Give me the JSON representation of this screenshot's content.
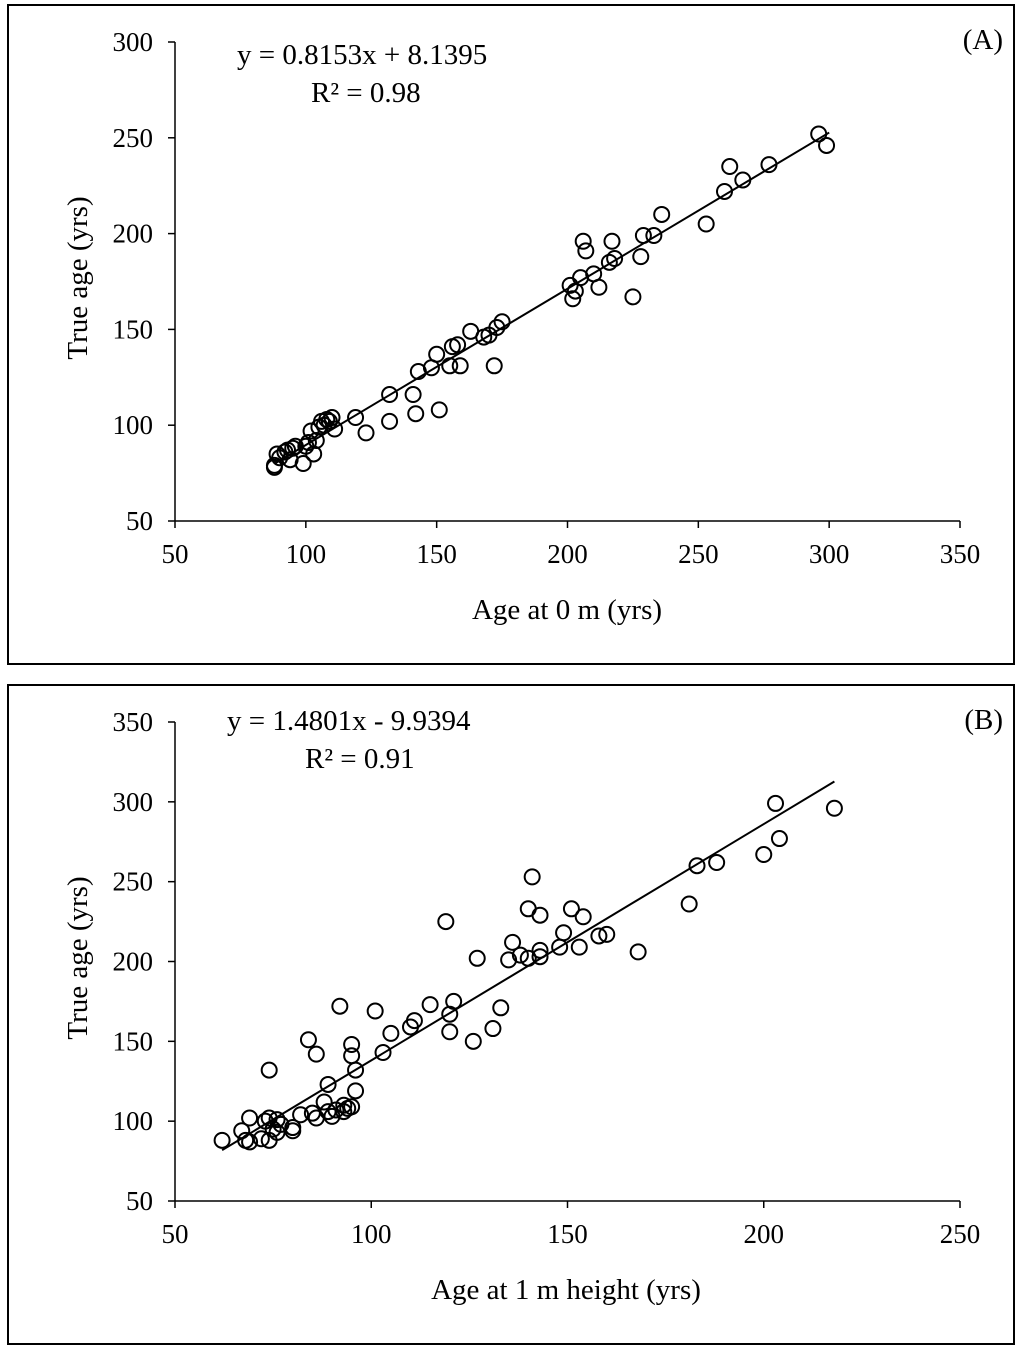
{
  "chart_data": [
    {
      "panel": "(A)",
      "type": "scatter",
      "xlabel": "Age at 0 m (yrs)",
      "ylabel": "True age (yrs)",
      "xlim": [
        50,
        350
      ],
      "ylim": [
        50,
        300
      ],
      "xticks": [
        50,
        100,
        150,
        200,
        250,
        300,
        350
      ],
      "yticks": [
        50,
        100,
        150,
        200,
        250,
        300
      ],
      "equation": "y = 0.8153x + 8.1395",
      "r2": "R² = 0.98",
      "trendline": {
        "slope": 0.8153,
        "intercept": 8.1395,
        "x_range": [
          88,
          300
        ]
      },
      "points": [
        [
          88,
          78
        ],
        [
          88,
          79
        ],
        [
          89,
          85
        ],
        [
          90,
          83
        ],
        [
          92,
          86
        ],
        [
          93,
          87
        ],
        [
          94,
          82
        ],
        [
          95,
          88
        ],
        [
          96,
          89
        ],
        [
          99,
          80
        ],
        [
          100,
          89
        ],
        [
          101,
          91
        ],
        [
          102,
          97
        ],
        [
          103,
          85
        ],
        [
          104,
          92
        ],
        [
          105,
          99
        ],
        [
          106,
          102
        ],
        [
          107,
          100
        ],
        [
          108,
          103
        ],
        [
          109,
          102
        ],
        [
          110,
          104
        ],
        [
          111,
          98
        ],
        [
          119,
          104
        ],
        [
          123,
          96
        ],
        [
          132,
          116
        ],
        [
          132,
          102
        ],
        [
          141,
          116
        ],
        [
          142,
          106
        ],
        [
          143,
          128
        ],
        [
          148,
          130
        ],
        [
          150,
          137
        ],
        [
          151,
          108
        ],
        [
          155,
          131
        ],
        [
          156,
          141
        ],
        [
          158,
          142
        ],
        [
          159,
          131
        ],
        [
          163,
          149
        ],
        [
          168,
          146
        ],
        [
          170,
          147
        ],
        [
          172,
          131
        ],
        [
          173,
          151
        ],
        [
          175,
          154
        ],
        [
          201,
          173
        ],
        [
          202,
          166
        ],
        [
          203,
          170
        ],
        [
          205,
          177
        ],
        [
          206,
          196
        ],
        [
          207,
          191
        ],
        [
          210,
          179
        ],
        [
          212,
          172
        ],
        [
          216,
          185
        ],
        [
          217,
          196
        ],
        [
          218,
          187
        ],
        [
          225,
          167
        ],
        [
          228,
          188
        ],
        [
          229,
          199
        ],
        [
          233,
          199
        ],
        [
          236,
          210
        ],
        [
          253,
          205
        ],
        [
          260,
          222
        ],
        [
          262,
          235
        ],
        [
          267,
          228
        ],
        [
          277,
          236
        ],
        [
          296,
          252
        ],
        [
          299,
          246
        ]
      ]
    },
    {
      "panel": "(B)",
      "type": "scatter",
      "xlabel": "Age at 1 m height (yrs)",
      "ylabel": "True age (yrs)",
      "xlim": [
        50,
        250
      ],
      "ylim": [
        50,
        350
      ],
      "xticks": [
        50,
        100,
        150,
        200,
        250
      ],
      "yticks": [
        50,
        100,
        150,
        200,
        250,
        300,
        350
      ],
      "equation": "y = 1.4801x - 9.9394",
      "r2": "R² = 0.91",
      "trendline": {
        "slope": 1.4801,
        "intercept": -9.9394,
        "x_range": [
          62,
          218
        ]
      },
      "points": [
        [
          62,
          88
        ],
        [
          67,
          94
        ],
        [
          68,
          88
        ],
        [
          69,
          87
        ],
        [
          69,
          102
        ],
        [
          72,
          89
        ],
        [
          73,
          100
        ],
        [
          74,
          88
        ],
        [
          74,
          102
        ],
        [
          74,
          132
        ],
        [
          75,
          95
        ],
        [
          76,
          93
        ],
        [
          76,
          101
        ],
        [
          77,
          98
        ],
        [
          80,
          94
        ],
        [
          80,
          96
        ],
        [
          82,
          104
        ],
        [
          84,
          151
        ],
        [
          85,
          105
        ],
        [
          86,
          102
        ],
        [
          86,
          142
        ],
        [
          88,
          112
        ],
        [
          89,
          123
        ],
        [
          89,
          106
        ],
        [
          90,
          103
        ],
        [
          91,
          107
        ],
        [
          92,
          172
        ],
        [
          93,
          110
        ],
        [
          93,
          106
        ],
        [
          94,
          108
        ],
        [
          95,
          148
        ],
        [
          95,
          141
        ],
        [
          95,
          109
        ],
        [
          96,
          132
        ],
        [
          96,
          119
        ],
        [
          101,
          169
        ],
        [
          103,
          143
        ],
        [
          105,
          155
        ],
        [
          110,
          159
        ],
        [
          111,
          163
        ],
        [
          115,
          173
        ],
        [
          119,
          225
        ],
        [
          120,
          167
        ],
        [
          120,
          156
        ],
        [
          121,
          175
        ],
        [
          126,
          150
        ],
        [
          127,
          202
        ],
        [
          131,
          158
        ],
        [
          133,
          171
        ],
        [
          135,
          201
        ],
        [
          136,
          212
        ],
        [
          138,
          204
        ],
        [
          140,
          233
        ],
        [
          140,
          202
        ],
        [
          141,
          253
        ],
        [
          143,
          203
        ],
        [
          143,
          229
        ],
        [
          143,
          207
        ],
        [
          148,
          209
        ],
        [
          149,
          218
        ],
        [
          151,
          233
        ],
        [
          153,
          209
        ],
        [
          154,
          228
        ],
        [
          158,
          216
        ],
        [
          160,
          217
        ],
        [
          168,
          206
        ],
        [
          181,
          236
        ],
        [
          183,
          260
        ],
        [
          188,
          262
        ],
        [
          200,
          267
        ],
        [
          203,
          299
        ],
        [
          204,
          277
        ],
        [
          218,
          296
        ]
      ]
    }
  ]
}
